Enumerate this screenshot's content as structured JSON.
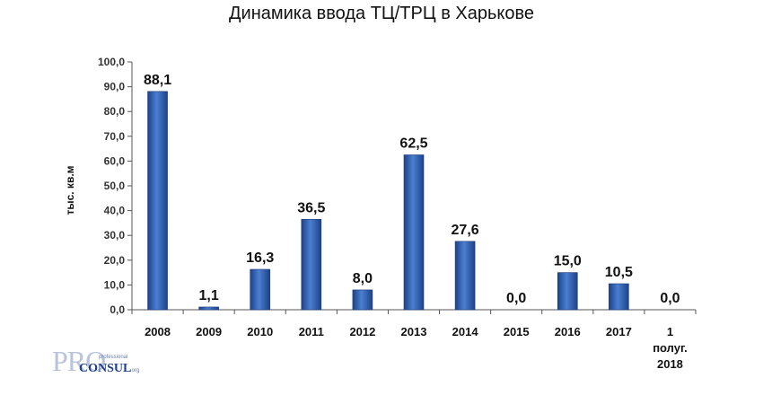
{
  "chart_data": {
    "type": "bar",
    "title": "Динамика ввода ТЦ/ТРЦ в Харькове",
    "xlabel": "",
    "ylabel": "тыс. кв.м",
    "ylim": [
      0,
      100
    ],
    "ytick_labels": [
      "0,0",
      "10,0",
      "20,0",
      "30,0",
      "40,0",
      "50,0",
      "60,0",
      "70,0",
      "80,0",
      "90,0",
      "100,0"
    ],
    "categories": [
      "2008",
      "2009",
      "2010",
      "2011",
      "2012",
      "2013",
      "2014",
      "2015",
      "2016",
      "2017",
      "1 полуг. 2018"
    ],
    "values": [
      88.1,
      1.1,
      16.3,
      36.5,
      8.0,
      62.5,
      27.6,
      0.0,
      15.0,
      10.5,
      0.0
    ],
    "data_labels": [
      "88,1",
      "1,1",
      "16,3",
      "36,5",
      "8,0",
      "62,5",
      "27,6",
      "0,0",
      "15,0",
      "10,5",
      "0,0"
    ],
    "grid": false,
    "legend": "none",
    "bar_color": "#3567b8"
  },
  "watermark": {
    "pro": "PRO",
    "consul": "CONSUL",
    "professional": "professional",
    "org": ".org"
  }
}
